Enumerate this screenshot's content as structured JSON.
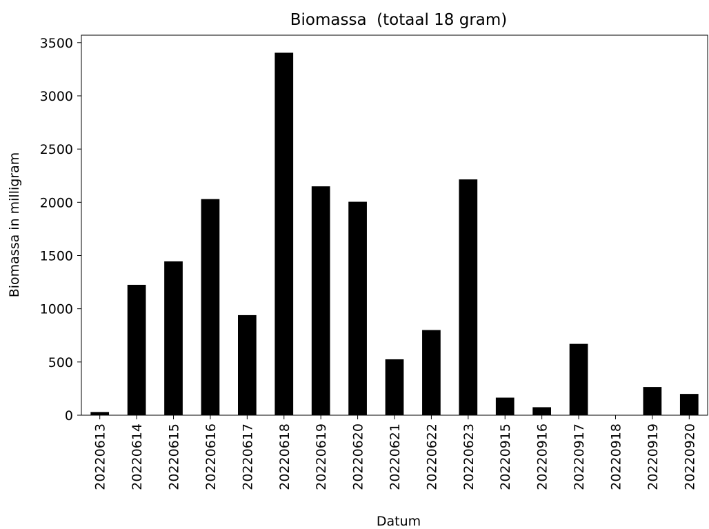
{
  "chart_data": {
    "type": "bar",
    "title": "Biomassa  (totaal 18 gram)",
    "x_label": "Datum",
    "y_label": "Biomassa in milligram",
    "categories": [
      "20220613",
      "20220614",
      "20220615",
      "20220616",
      "20220617",
      "20220618",
      "20220619",
      "20220620",
      "20220621",
      "20220622",
      "20220623",
      "20220915",
      "20220916",
      "20220917",
      "20220918",
      "20220919",
      "20220920"
    ],
    "values": [
      30,
      1225,
      1445,
      2030,
      940,
      3405,
      2150,
      2005,
      525,
      800,
      2215,
      165,
      75,
      670,
      0,
      265,
      200
    ],
    "color": "#000000",
    "ylim": [
      0,
      3570
    ],
    "yticks": [
      0,
      500,
      1000,
      1500,
      2000,
      2500,
      3000,
      3500
    ],
    "grid": false
  }
}
